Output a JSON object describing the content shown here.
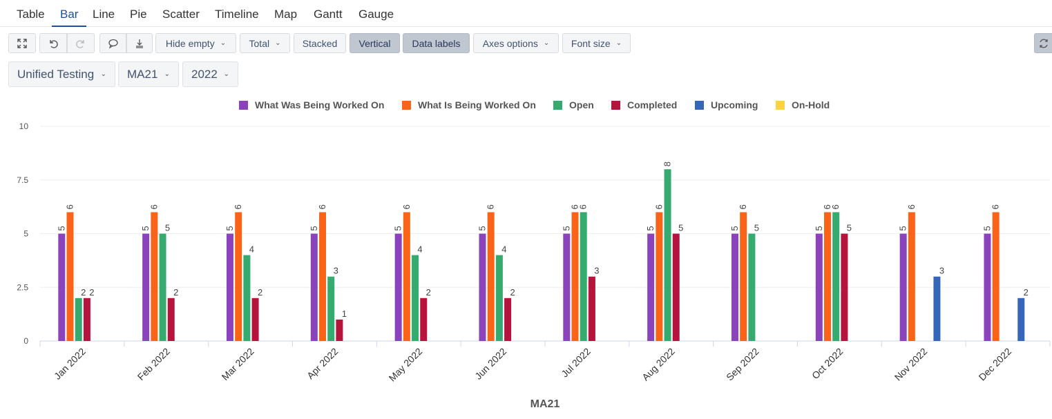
{
  "tabs": [
    "Table",
    "Bar",
    "Line",
    "Pie",
    "Scatter",
    "Timeline",
    "Map",
    "Gantt",
    "Gauge"
  ],
  "active_tab": "Bar",
  "toolbar": {
    "hide_empty": "Hide empty",
    "total": "Total",
    "stacked": "Stacked",
    "vertical": "Vertical",
    "data_labels": "Data labels",
    "axes_options": "Axes options",
    "font_size": "Font size"
  },
  "filters": {
    "project": "Unified Testing",
    "version": "MA21",
    "year": "2022"
  },
  "chart_data": {
    "type": "bar",
    "xlabel": "MA21",
    "ylabel": "",
    "ylim": [
      0,
      10
    ],
    "yticks": [
      "0",
      "2.5",
      "5",
      "7.5",
      "10"
    ],
    "ytick_values": [
      0,
      2.5,
      5,
      7.5,
      10
    ],
    "categories": [
      "Jan 2022",
      "Feb 2022",
      "Mar 2022",
      "Apr 2022",
      "May 2022",
      "Jun 2022",
      "Jul 2022",
      "Aug 2022",
      "Sep 2022",
      "Oct 2022",
      "Nov 2022",
      "Dec 2022"
    ],
    "series": [
      {
        "name": "What Was Being Worked On",
        "color": "#8b43bb",
        "values": [
          5,
          5,
          5,
          5,
          5,
          5,
          5,
          5,
          5,
          5,
          5,
          5
        ]
      },
      {
        "name": "What Is Being Worked On",
        "color": "#f96418",
        "values": [
          6,
          6,
          6,
          6,
          6,
          6,
          6,
          6,
          6,
          6,
          6,
          6
        ]
      },
      {
        "name": "Open",
        "color": "#36ab6f",
        "values": [
          2,
          5,
          4,
          3,
          4,
          4,
          6,
          8,
          5,
          6,
          null,
          null
        ]
      },
      {
        "name": "Completed",
        "color": "#b5143c",
        "values": [
          2,
          2,
          2,
          1,
          2,
          2,
          3,
          5,
          null,
          5,
          null,
          null
        ]
      },
      {
        "name": "Upcoming",
        "color": "#3566b8",
        "values": [
          null,
          null,
          null,
          null,
          null,
          null,
          null,
          null,
          null,
          null,
          3,
          2
        ]
      },
      {
        "name": "On-Hold",
        "color": "#ffd23f",
        "values": [
          null,
          null,
          null,
          null,
          null,
          null,
          null,
          null,
          null,
          null,
          null,
          null
        ]
      }
    ],
    "data_labels": true,
    "legend_position": "top-center",
    "grid": true
  }
}
